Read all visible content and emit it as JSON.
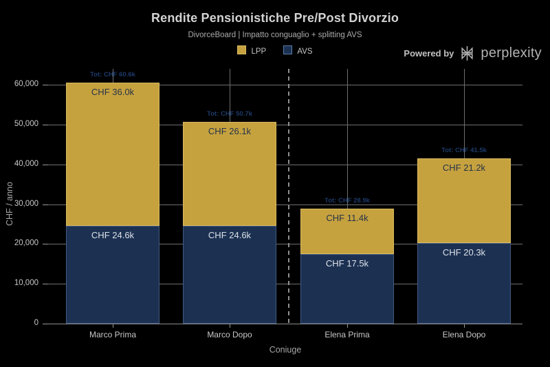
{
  "header": {
    "title": "Rendite Pensionistiche Pre/Post Divorzio",
    "subtitle": "DivorceBoard | Impatto conguaglio + splitting AVS",
    "powered_by": "Powered by",
    "brand": "perplexity"
  },
  "legend": {
    "items": [
      {
        "label": "LPP",
        "color": "#C6A23F",
        "border": "#d9bb62"
      },
      {
        "label": "AVS",
        "color": "#1C3152",
        "border": "#5b7fae"
      }
    ]
  },
  "chart_data": {
    "type": "bar",
    "stacked": true,
    "title": "Rendite Pensionistiche Pre/Post Divorzio",
    "subtitle": "DivorceBoard | Impatto conguaglio + splitting AVS",
    "xlabel": "Coniuge",
    "ylabel": "CHF / anno",
    "categories": [
      "Marco Prima",
      "Marco Dopo",
      "Elena Prima",
      "Elena Dopo"
    ],
    "series": [
      {
        "name": "AVS",
        "color": "#1C3152",
        "edge_color": "rgba(110,145,190,0.45)",
        "label_color": "#dde1e8",
        "values": [
          24600,
          24600,
          17500,
          20300
        ],
        "labels": [
          "CHF 24.6k",
          "CHF 24.6k",
          "CHF 17.5k",
          "CHF 20.3k"
        ]
      },
      {
        "name": "LPP",
        "color": "#C6A23F",
        "edge_color": "rgba(235,210,130,0.5)",
        "label_color": "#243247",
        "values": [
          36000,
          26100,
          11400,
          21200
        ],
        "labels": [
          "CHF 36.0k",
          "CHF 26.1k",
          "CHF 11.4k",
          "CHF 21.2k"
        ]
      }
    ],
    "totals": [
      60600,
      50700,
      28900,
      41500
    ],
    "total_labels": [
      "Tot: CHF 60.6k",
      "Tot: CHF 50.7k",
      "Tot: CHF 28.9k",
      "Tot: CHF 41.5k"
    ],
    "total_label_color": "#1d3a6a",
    "ylim": [
      0,
      63000
    ],
    "yticks": [
      0,
      10000,
      20000,
      30000,
      40000,
      50000,
      60000
    ],
    "ytick_labels": [
      "0",
      "10,000",
      "20,000",
      "30,000",
      "40,000",
      "50,000",
      "60,000"
    ],
    "grid": true,
    "legend_position": "top-center",
    "separator_after_category": 2
  }
}
